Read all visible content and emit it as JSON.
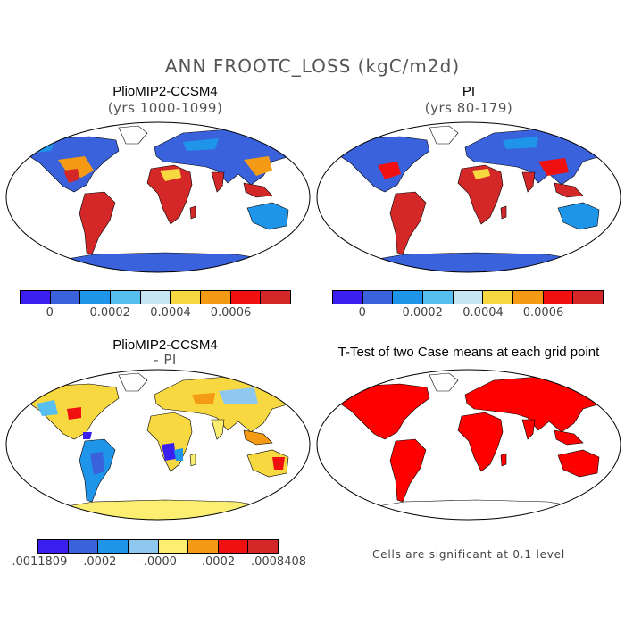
{
  "title": "ANN FROOTC_LOSS (kgC/m2d)",
  "panels": [
    {
      "title": "PlioMIP2-CCSM4",
      "subtitle": "(yrs 1000-1099)"
    },
    {
      "title": "PI",
      "subtitle": "(yrs 80-179)"
    },
    {
      "title": "PlioMIP2-CCSM4",
      "subtitle": "- PI"
    },
    {
      "title": "T-Test of two Case means at each grid point",
      "subtitle": ""
    }
  ],
  "colorbar_top": {
    "colors": [
      "#3b1ff0",
      "#3a62dc",
      "#1f95ea",
      "#56bff0",
      "#c6e6f4",
      "#f8d840",
      "#f59a14",
      "#f01010",
      "#d42828"
    ],
    "ticks": [
      "0",
      "0.0002",
      "0.0004",
      "0.0006"
    ]
  },
  "colorbar_bottom": {
    "colors": [
      "#3b1ff0",
      "#3a62dc",
      "#1f95ea",
      "#8fc8ee",
      "#fbee70",
      "#f59a14",
      "#f01010",
      "#d42828"
    ],
    "ticks": [
      "-.0011809",
      "-.0002",
      "-.0000",
      ".0002",
      ".0008408"
    ]
  },
  "note": "Cells are significant at 0.1 level",
  "colors": {
    "ocean": "#ffffff",
    "outline": "#000000",
    "significant": "#ff0000"
  }
}
